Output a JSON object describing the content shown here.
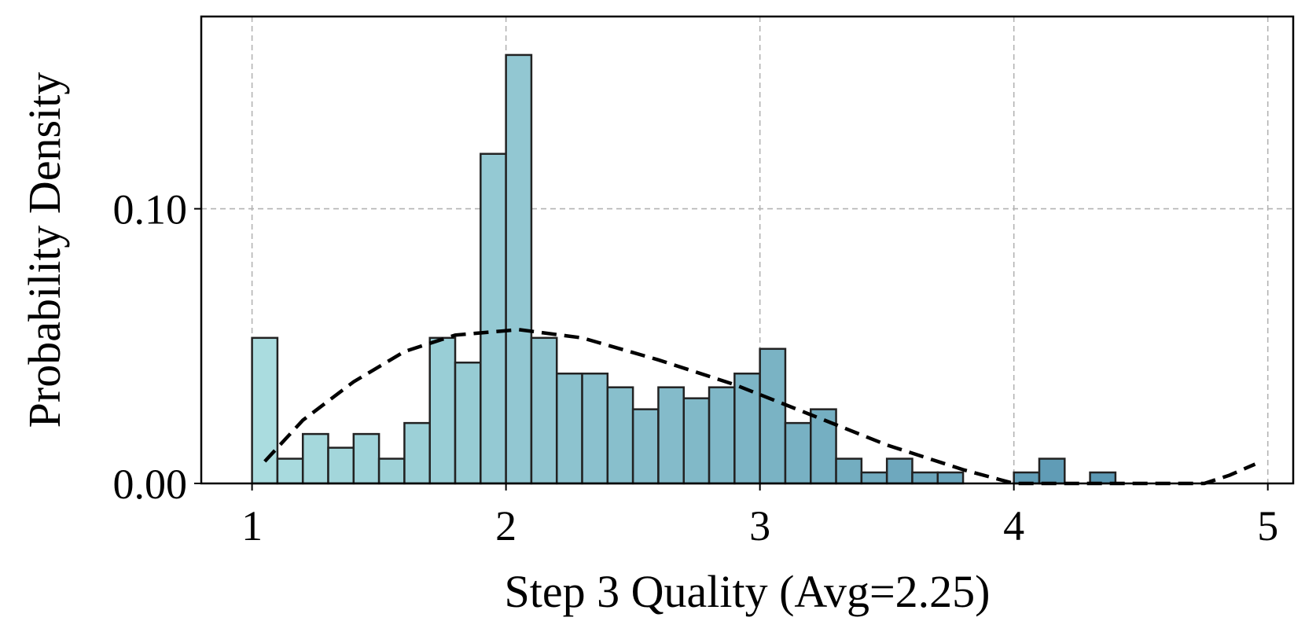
{
  "chart_data": {
    "type": "bar",
    "xlabel": "Step 3 Quality (Avg=2.25)",
    "ylabel": "Probability Density",
    "xlim": [
      0.8,
      5.1
    ],
    "ylim": [
      0,
      0.17
    ],
    "x_ticks": [
      1,
      2,
      3,
      4,
      5
    ],
    "x_tick_labels": [
      "1",
      "2",
      "3",
      "4",
      "5"
    ],
    "y_ticks": [
      0.0,
      0.1
    ],
    "y_tick_labels": [
      "0.00",
      "0.10"
    ],
    "grid": true,
    "bin_width": 0.1,
    "bin_left_edges": [
      1.0,
      1.1,
      1.2,
      1.3,
      1.4,
      1.5,
      1.6,
      1.7,
      1.8,
      1.9,
      2.0,
      2.1,
      2.2,
      2.3,
      2.4,
      2.5,
      2.6,
      2.7,
      2.8,
      2.9,
      3.0,
      3.1,
      3.2,
      3.3,
      3.4,
      3.5,
      3.6,
      3.7,
      3.8,
      3.9,
      4.0,
      4.1,
      4.2,
      4.3
    ],
    "values": [
      0.053,
      0.009,
      0.018,
      0.013,
      0.018,
      0.009,
      0.022,
      0.053,
      0.044,
      0.12,
      0.156,
      0.053,
      0.04,
      0.04,
      0.035,
      0.027,
      0.035,
      0.031,
      0.035,
      0.04,
      0.049,
      0.022,
      0.027,
      0.009,
      0.004,
      0.009,
      0.004,
      0.004,
      0.0,
      0.0,
      0.004,
      0.009,
      0.0,
      0.004
    ],
    "bar_color_start": "#aadcdf",
    "bar_color_end": "#5b98b3",
    "fit_curve": {
      "style": "dashed",
      "color": "#000000",
      "x": [
        1.05,
        1.2,
        1.4,
        1.6,
        1.8,
        2.05,
        2.3,
        2.6,
        2.9,
        3.2,
        3.5,
        3.8,
        4.0,
        4.2,
        4.4,
        4.6,
        4.75,
        4.85,
        4.95
      ],
      "y": [
        0.008,
        0.023,
        0.037,
        0.048,
        0.054,
        0.056,
        0.053,
        0.045,
        0.036,
        0.025,
        0.014,
        0.005,
        0.0,
        -0.005,
        -0.007,
        -0.004,
        0.0,
        0.003,
        0.007
      ]
    }
  }
}
